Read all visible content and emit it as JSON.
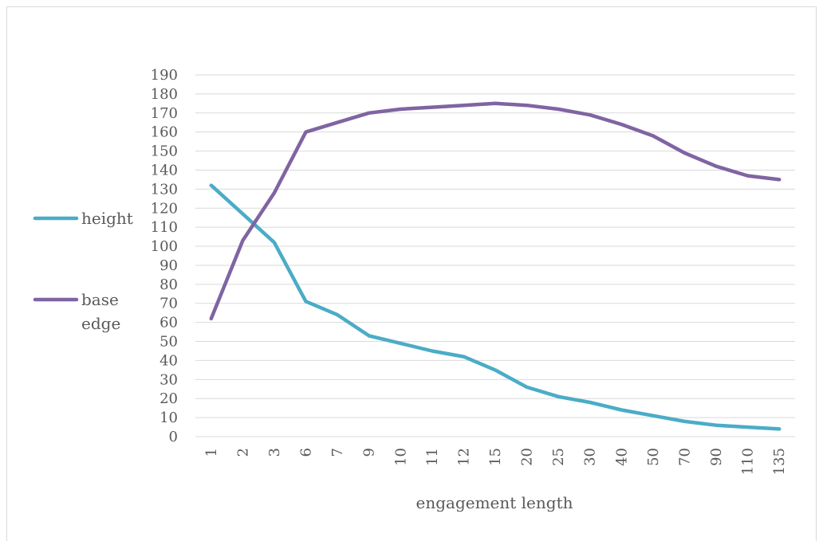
{
  "chart_data": {
    "type": "line",
    "xlabel": "engagement length",
    "ylabel": "",
    "ylim": [
      0,
      190
    ],
    "yticks": [
      0,
      10,
      20,
      30,
      40,
      50,
      60,
      70,
      80,
      90,
      100,
      110,
      120,
      130,
      140,
      150,
      160,
      170,
      180,
      190
    ],
    "grid": true,
    "legend_position": "left",
    "categories": [
      "1",
      "2",
      "3",
      "6",
      "7",
      "9",
      "10",
      "11",
      "12",
      "15",
      "20",
      "25",
      "30",
      "40",
      "50",
      "70",
      "90",
      "110",
      "135"
    ],
    "series": [
      {
        "name": "height",
        "color": "#4bacc6",
        "values": [
          132,
          117,
          102,
          71,
          64,
          53,
          49,
          45,
          42,
          35,
          26,
          21,
          18,
          14,
          11,
          8,
          6,
          5,
          4
        ]
      },
      {
        "name": "base edge",
        "color": "#8064a2",
        "values": [
          62,
          103,
          128,
          160,
          165,
          170,
          172,
          173,
          174,
          175,
          174,
          172,
          169,
          164,
          158,
          149,
          142,
          137,
          135
        ]
      }
    ]
  }
}
